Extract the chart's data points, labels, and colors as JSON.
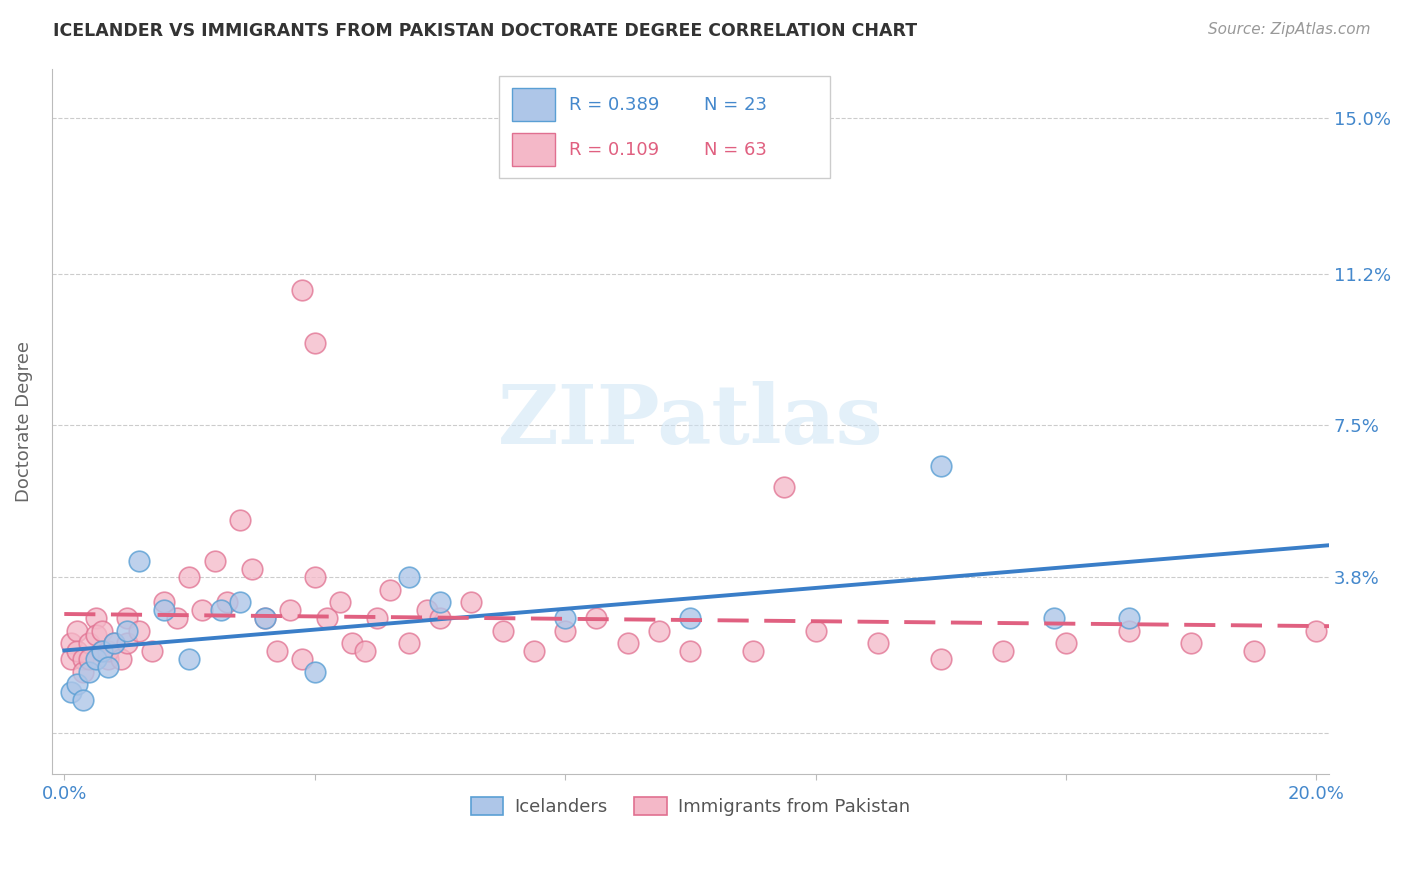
{
  "title": "ICELANDER VS IMMIGRANTS FROM PAKISTAN DOCTORATE DEGREE CORRELATION CHART",
  "source": "Source: ZipAtlas.com",
  "ylabel": "Doctorate Degree",
  "xlim": [
    -0.002,
    0.202
  ],
  "ylim": [
    -0.01,
    0.162
  ],
  "yticks": [
    0.0,
    0.038,
    0.075,
    0.112,
    0.15
  ],
  "ytick_labels": [
    "",
    "3.8%",
    "7.5%",
    "11.2%",
    "15.0%"
  ],
  "xticks": [
    0.0,
    0.04,
    0.08,
    0.12,
    0.16,
    0.2
  ],
  "xtick_labels": [
    "0.0%",
    "",
    "",
    "",
    "",
    "20.0%"
  ],
  "watermark_text": "ZIPatlas",
  "icelanders_color": "#aec6e8",
  "pakistan_color": "#f4b8c8",
  "icelanders_edge": "#5a9fd4",
  "pakistan_edge": "#e07090",
  "trend_iceland_color": "#3a7ec8",
  "trend_pakistan_color": "#e06080",
  "legend_color": "#3a7ec8",
  "icelanders_x": [
    0.001,
    0.002,
    0.003,
    0.004,
    0.005,
    0.006,
    0.007,
    0.008,
    0.01,
    0.012,
    0.016,
    0.02,
    0.025,
    0.028,
    0.032,
    0.04,
    0.055,
    0.06,
    0.08,
    0.1,
    0.14,
    0.158,
    0.17
  ],
  "icelanders_y": [
    0.01,
    0.012,
    0.008,
    0.015,
    0.018,
    0.02,
    0.016,
    0.022,
    0.025,
    0.042,
    0.03,
    0.018,
    0.03,
    0.032,
    0.028,
    0.015,
    0.038,
    0.032,
    0.028,
    0.028,
    0.065,
    0.028,
    0.028
  ],
  "pakistan_x": [
    0.001,
    0.001,
    0.002,
    0.002,
    0.003,
    0.003,
    0.004,
    0.004,
    0.005,
    0.005,
    0.006,
    0.006,
    0.007,
    0.007,
    0.008,
    0.009,
    0.01,
    0.01,
    0.012,
    0.014,
    0.016,
    0.018,
    0.02,
    0.022,
    0.024,
    0.026,
    0.028,
    0.03,
    0.032,
    0.034,
    0.036,
    0.038,
    0.04,
    0.042,
    0.044,
    0.046,
    0.048,
    0.05,
    0.052,
    0.055,
    0.058,
    0.06,
    0.065,
    0.07,
    0.075,
    0.08,
    0.085,
    0.09,
    0.095,
    0.1,
    0.11,
    0.12,
    0.13,
    0.14,
    0.15,
    0.16,
    0.17,
    0.18,
    0.19,
    0.2,
    0.038,
    0.04,
    0.115
  ],
  "pakistan_y": [
    0.022,
    0.018,
    0.025,
    0.02,
    0.018,
    0.015,
    0.022,
    0.018,
    0.028,
    0.024,
    0.02,
    0.025,
    0.018,
    0.02,
    0.022,
    0.018,
    0.028,
    0.022,
    0.025,
    0.02,
    0.032,
    0.028,
    0.038,
    0.03,
    0.042,
    0.032,
    0.052,
    0.04,
    0.028,
    0.02,
    0.03,
    0.018,
    0.038,
    0.028,
    0.032,
    0.022,
    0.02,
    0.028,
    0.035,
    0.022,
    0.03,
    0.028,
    0.032,
    0.025,
    0.02,
    0.025,
    0.028,
    0.022,
    0.025,
    0.02,
    0.02,
    0.025,
    0.022,
    0.018,
    0.02,
    0.022,
    0.025,
    0.022,
    0.02,
    0.025,
    0.108,
    0.095,
    0.06
  ]
}
